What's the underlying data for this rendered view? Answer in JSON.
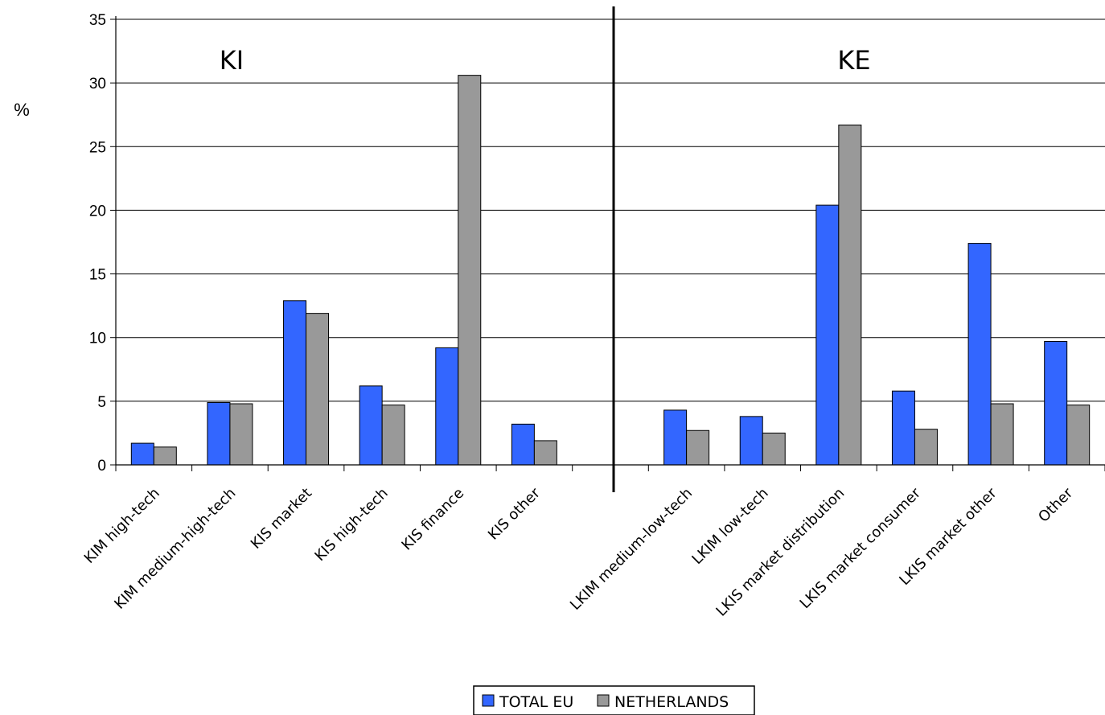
{
  "colors": {
    "total_eu": "#3366ff",
    "netherlands": "#999999",
    "grid": "#000000"
  },
  "chart_data": {
    "type": "bar",
    "ylabel": "%",
    "ylim": [
      0,
      35
    ],
    "yticks": [
      0,
      5,
      10,
      15,
      20,
      25,
      30,
      35
    ],
    "grid": true,
    "legend_position": "bottom",
    "group_labels": [
      "KI",
      "KE"
    ],
    "categories": [
      "KIM high-tech",
      "KIM medium-high-tech",
      "KIS market",
      "KIS high-tech",
      "KIS finance",
      "KIS other",
      "",
      "LKIM medium-low-tech",
      "LKIM low-tech",
      "LKIS market distribution",
      "LKIS market consumer",
      "LKIS market other",
      "Other"
    ],
    "series": [
      {
        "name": "TOTAL EU",
        "values": [
          1.7,
          4.9,
          12.9,
          6.2,
          9.2,
          3.2,
          null,
          4.3,
          3.8,
          20.4,
          5.8,
          17.4,
          9.7
        ]
      },
      {
        "name": "NETHERLANDS",
        "values": [
          1.4,
          4.8,
          11.9,
          4.7,
          30.6,
          1.9,
          null,
          2.7,
          2.5,
          26.7,
          2.8,
          4.8,
          4.7
        ]
      }
    ]
  }
}
